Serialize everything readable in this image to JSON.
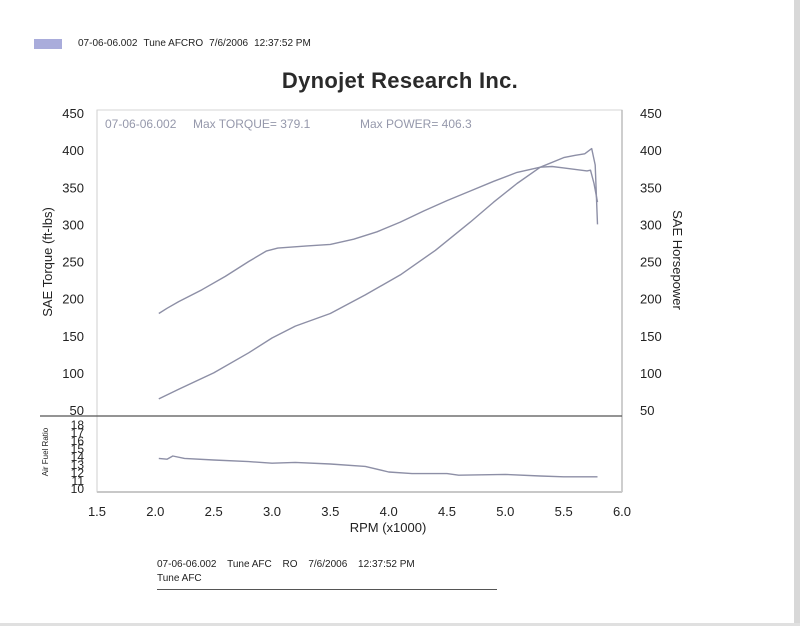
{
  "header": {
    "run_id": "07-06-06.002",
    "tune": "Tune AFCRO",
    "date": "7/6/2006",
    "time": "12:37:52 PM",
    "swatch_color": "#a9acdb"
  },
  "footer": {
    "run_id": "07-06-06.002",
    "tune": "Tune AFC",
    "suffix": "RO",
    "date": "7/6/2006",
    "time": "12:37:52 PM",
    "line2": "Tune AFC"
  },
  "chart_data": [
    {
      "type": "line",
      "title": "Dynojet Research Inc.",
      "annotation": {
        "run_id": "07-06-06.002",
        "max_torque": "Max TORQUE= 379.1",
        "max_power": "Max POWER= 406.3"
      },
      "xlabel": "RPM (x1000)",
      "xlim": [
        1.5,
        6.0
      ],
      "xticks": [
        "1.5",
        "2.0",
        "2.5",
        "3.0",
        "3.5",
        "4.0",
        "4.5",
        "5.0",
        "5.5",
        "6.0"
      ],
      "ylabel": "SAE Torque (ft-lbs)",
      "ylim": [
        50,
        450
      ],
      "yticks": [
        "50",
        "100",
        "150",
        "200",
        "250",
        "300",
        "350",
        "400",
        "450"
      ],
      "y2label": "SAE Horsepower",
      "y2lim": [
        50,
        450
      ],
      "y2ticks": [
        "50",
        "100",
        "150",
        "200",
        "250",
        "300",
        "350",
        "400",
        "450"
      ],
      "grid": false,
      "series": [
        {
          "name": "SAE Torque",
          "color": "#8d8fa6",
          "points": [
            [
              2.03,
              180
            ],
            [
              2.1,
              187
            ],
            [
              2.2,
              196
            ],
            [
              2.4,
              212
            ],
            [
              2.6,
              230
            ],
            [
              2.8,
              250
            ],
            [
              2.95,
              264
            ],
            [
              3.05,
              268
            ],
            [
              3.3,
              271
            ],
            [
              3.5,
              273
            ],
            [
              3.7,
              280
            ],
            [
              3.9,
              290
            ],
            [
              4.1,
              303
            ],
            [
              4.3,
              318
            ],
            [
              4.5,
              332
            ],
            [
              4.7,
              345
            ],
            [
              4.9,
              358
            ],
            [
              5.1,
              370
            ],
            [
              5.3,
              377
            ],
            [
              5.4,
              378
            ],
            [
              5.5,
              376
            ],
            [
              5.6,
              374
            ],
            [
              5.7,
              372
            ],
            [
              5.73,
              373
            ],
            [
              5.76,
              355
            ],
            [
              5.79,
              330
            ]
          ]
        },
        {
          "name": "SAE Horsepower",
          "color": "#8d8fa6",
          "points": [
            [
              2.03,
              65
            ],
            [
              2.2,
              78
            ],
            [
              2.5,
              100
            ],
            [
              2.8,
              127
            ],
            [
              3.0,
              147
            ],
            [
              3.2,
              163
            ],
            [
              3.5,
              180
            ],
            [
              3.8,
              205
            ],
            [
              4.1,
              232
            ],
            [
              4.4,
              265
            ],
            [
              4.7,
              303
            ],
            [
              4.9,
              330
            ],
            [
              5.1,
              355
            ],
            [
              5.3,
              377
            ],
            [
              5.5,
              390
            ],
            [
              5.6,
              393
            ],
            [
              5.68,
              395
            ],
            [
              5.74,
              402
            ],
            [
              5.77,
              380
            ],
            [
              5.79,
              300
            ]
          ]
        }
      ]
    },
    {
      "type": "line",
      "ylabel": "Air Fuel Ratio",
      "ylim": [
        10,
        18
      ],
      "yticks": [
        "10",
        "11",
        "12",
        "13",
        "14",
        "15",
        "16",
        "17",
        "18"
      ],
      "xlim": [
        1.5,
        6.0
      ],
      "series": [
        {
          "name": "Air Fuel Ratio",
          "color": "#8d8fa6",
          "points": [
            [
              2.03,
              13.7
            ],
            [
              2.1,
              13.6
            ],
            [
              2.15,
              14.0
            ],
            [
              2.25,
              13.7
            ],
            [
              2.5,
              13.5
            ],
            [
              2.8,
              13.3
            ],
            [
              3.0,
              13.1
            ],
            [
              3.2,
              13.2
            ],
            [
              3.5,
              13.0
            ],
            [
              3.8,
              12.7
            ],
            [
              4.0,
              12.0
            ],
            [
              4.2,
              11.8
            ],
            [
              4.5,
              11.8
            ],
            [
              4.6,
              11.6
            ],
            [
              5.0,
              11.7
            ],
            [
              5.3,
              11.5
            ],
            [
              5.5,
              11.4
            ],
            [
              5.79,
              11.4
            ]
          ]
        }
      ]
    }
  ]
}
